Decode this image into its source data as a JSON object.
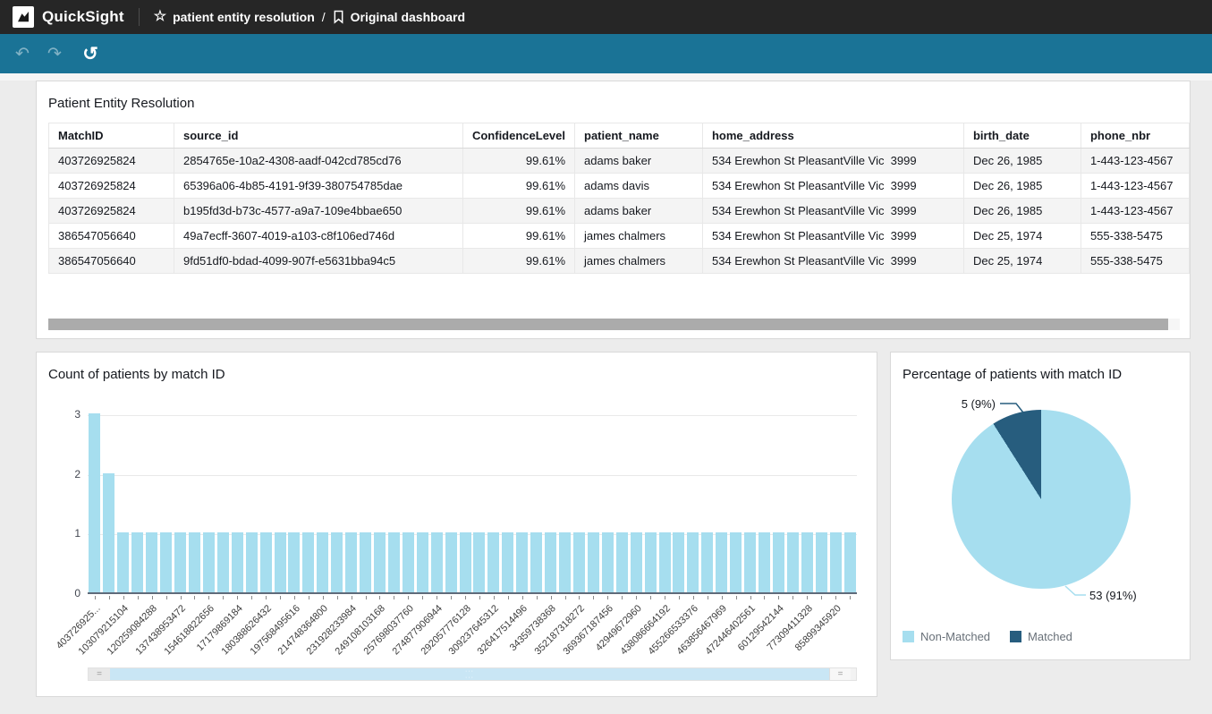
{
  "header": {
    "app_name": "QuickSight",
    "breadcrumb": {
      "dashboard_group": "patient entity resolution",
      "separator": "/",
      "dashboard_name": "Original dashboard"
    }
  },
  "toolbar": {
    "undo_icon": "↶",
    "redo_icon": "↷",
    "reset_icon": "↺"
  },
  "icons": {
    "star": "☆",
    "grip": "=",
    "thumb_dots": "···"
  },
  "table_panel": {
    "title": "Patient Entity Resolution",
    "columns": [
      "MatchID",
      "source_id",
      "ConfidenceLevel",
      "patient_name",
      "home_address",
      "birth_date",
      "phone_nbr"
    ],
    "rows": [
      [
        "403726925824",
        "2854765e-10a2-4308-aadf-042cd785cd76",
        "99.61%",
        "adams baker",
        "534 Erewhon St PleasantVille Vic  3999",
        "Dec 26, 1985",
        "1-443-123-4567"
      ],
      [
        "403726925824",
        "65396a06-4b85-4191-9f39-380754785dae",
        "99.61%",
        "adams davis",
        "534 Erewhon St PleasantVille Vic  3999",
        "Dec 26, 1985",
        "1-443-123-4567"
      ],
      [
        "403726925824",
        "b195fd3d-b73c-4577-a9a7-109e4bbae650",
        "99.61%",
        "adams baker",
        "534 Erewhon St PleasantVille Vic  3999",
        "Dec 26, 1985",
        "1-443-123-4567"
      ],
      [
        "386547056640",
        "49a7ecff-3607-4019-a103-c8f106ed746d",
        "99.61%",
        "james chalmers",
        "534 Erewhon St PleasantVille Vic  3999",
        "Dec 25, 1974",
        "555-338-5475"
      ],
      [
        "386547056640",
        "9fd51df0-bdad-4099-907f-e5631bba94c5",
        "99.61%",
        "james chalmers",
        "534 Erewhon St PleasantVille Vic  3999",
        "Dec 25, 1974",
        "555-338-5475"
      ]
    ]
  },
  "chart_data": [
    {
      "type": "bar",
      "title": "Count of patients by match ID",
      "values": [
        3,
        2,
        1,
        1,
        1,
        1,
        1,
        1,
        1,
        1,
        1,
        1,
        1,
        1,
        1,
        1,
        1,
        1,
        1,
        1,
        1,
        1,
        1,
        1,
        1,
        1,
        1,
        1,
        1,
        1,
        1,
        1,
        1,
        1,
        1,
        1,
        1,
        1,
        1,
        1,
        1,
        1,
        1,
        1,
        1,
        1,
        1,
        1,
        1,
        1,
        1,
        1,
        1,
        1
      ],
      "x_tick_labels": [
        "403726925...",
        "103079215104",
        "120259084288",
        "137438953472",
        "154618822656",
        "17179869184",
        "180388626432",
        "197568495616",
        "214748364800",
        "231928233984",
        "249108103168",
        "257698037760",
        "274877906944",
        "292057776128",
        "309237645312",
        "326417514496",
        "34359738368",
        "352187318272",
        "369367187456",
        "42949672960",
        "438086664192",
        "455266533376",
        "463856467969",
        "472446402561",
        "60129542144",
        "77309411328",
        "85899345920"
      ],
      "label_every_n_bars": 2,
      "ylim": [
        0,
        3
      ],
      "yticks": [
        0,
        1,
        2,
        3
      ],
      "grid": true,
      "bar_color": "#A6DEEF",
      "xlabel": "",
      "ylabel": ""
    },
    {
      "type": "pie",
      "title": "Percentage of patients with match ID",
      "labels": [
        "Non-Matched",
        "Matched"
      ],
      "values": [
        53,
        5
      ],
      "percents": [
        91,
        9
      ],
      "annotations": [
        "53 (91%)",
        "5 (9%)"
      ],
      "colors": [
        "#A6DEEF",
        "#275D7E"
      ],
      "legend_position": "bottom"
    }
  ],
  "colors": {
    "header_bg": "#262626",
    "toolbar_bg": "#1A7396",
    "bar_fill": "#A6DEEF",
    "pie_matched": "#275D7E",
    "pie_non_matched": "#A6DEEF",
    "legend_text": "#687078"
  }
}
